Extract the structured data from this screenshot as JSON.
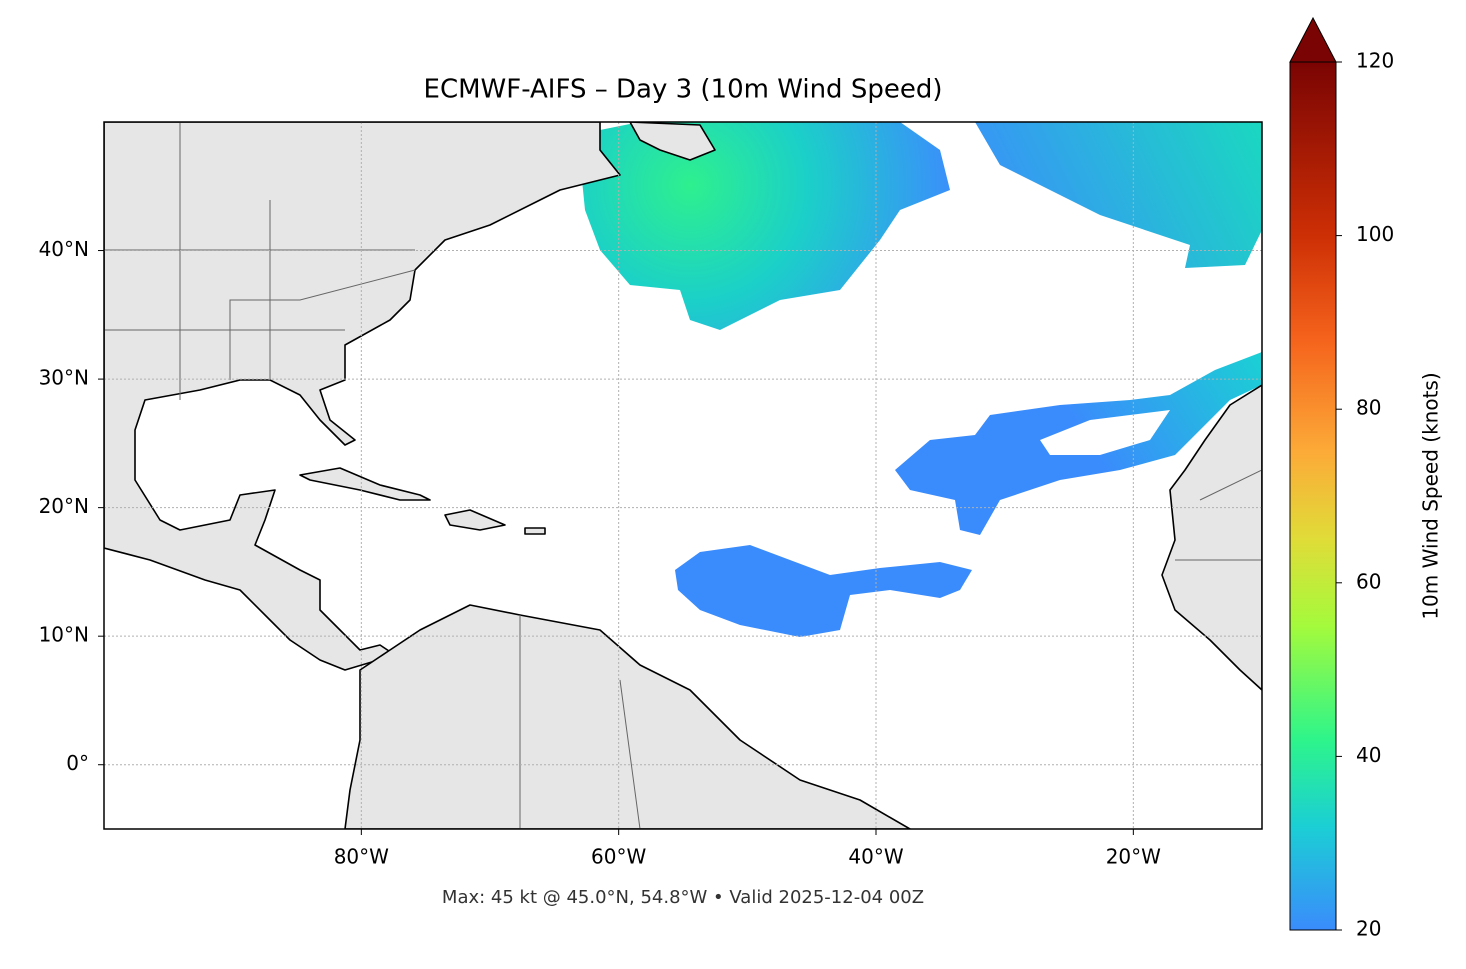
{
  "chart_data": {
    "type": "map",
    "title": "ECMWF-AIFS – Day 3 (10m Wind Speed)",
    "footnote": "Max: 45 kt @ 45.0°N, 54.8°W • Valid 2025-12-04 00Z",
    "xlim": [
      -100,
      -10
    ],
    "ylim": [
      -5,
      50
    ],
    "xticks": [
      {
        "value": -80,
        "label": "80°W"
      },
      {
        "value": -60,
        "label": "60°W"
      },
      {
        "value": -40,
        "label": "40°W"
      },
      {
        "value": -20,
        "label": "20°W"
      }
    ],
    "yticks": [
      {
        "value": 40,
        "label": "40°N"
      },
      {
        "value": 30,
        "label": "30°N"
      },
      {
        "value": 20,
        "label": "20°N"
      },
      {
        "value": 10,
        "label": "10°N"
      },
      {
        "value": 0,
        "label": "0°"
      }
    ],
    "grid": true,
    "colorbar": {
      "label": "10m Wind Speed (knots)",
      "lim": [
        20,
        120
      ],
      "ticks": [
        20,
        40,
        60,
        80,
        100,
        120
      ],
      "extend": "max"
    }
  }
}
